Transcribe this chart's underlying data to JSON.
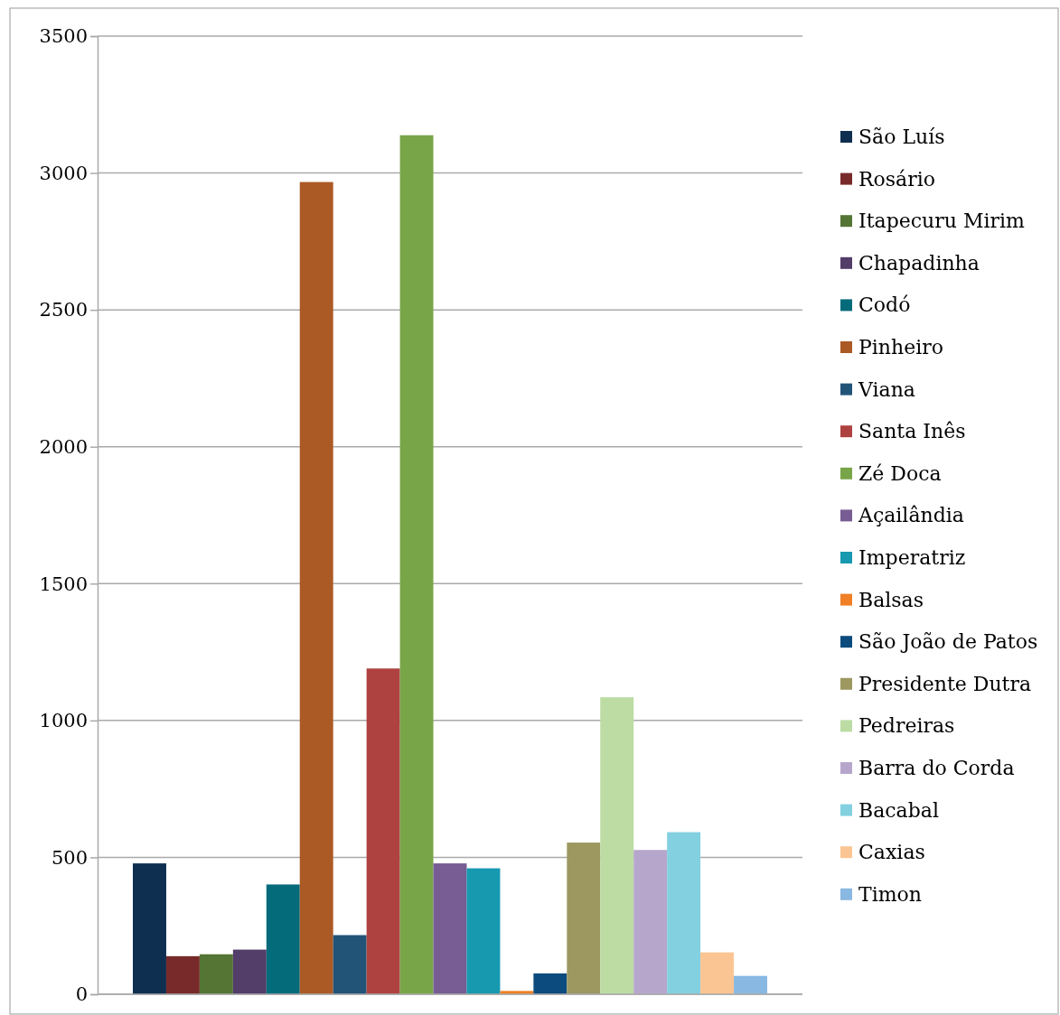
{
  "chart_data": {
    "type": "bar",
    "categories": [
      null
    ],
    "series": [
      {
        "name": "São Luís",
        "color": "#0e2f50",
        "values": [
          478
        ]
      },
      {
        "name": "Rosário",
        "color": "#772a29",
        "values": [
          139
        ]
      },
      {
        "name": "Itapecuru Mirim",
        "color": "#557535",
        "values": [
          146
        ]
      },
      {
        "name": "Chapadinha",
        "color": "#533d69",
        "values": [
          163
        ]
      },
      {
        "name": "Codó",
        "color": "#046b7b",
        "values": [
          401
        ]
      },
      {
        "name": "Pinheiro",
        "color": "#ab5a25",
        "values": [
          2967
        ]
      },
      {
        "name": "Viana",
        "color": "#225478",
        "values": [
          216
        ]
      },
      {
        "name": "Santa Inês",
        "color": "#ae4241",
        "values": [
          1190
        ]
      },
      {
        "name": "Zé Doca",
        "color": "#79a549",
        "values": [
          3138
        ]
      },
      {
        "name": "Açailândia",
        "color": "#775d93",
        "values": [
          478
        ]
      },
      {
        "name": "Imperatriz",
        "color": "#1799b0",
        "values": [
          460
        ]
      },
      {
        "name": "Balsas",
        "color": "#f07f25",
        "values": [
          12
        ]
      },
      {
        "name": "São João de Patos",
        "color": "#0c4b7d",
        "values": [
          76
        ]
      },
      {
        "name": "Presidente Dutra",
        "color": "#9c9860",
        "values": [
          554
        ]
      },
      {
        "name": "Pedreiras",
        "color": "#bcdca4",
        "values": [
          1085
        ]
      },
      {
        "name": "Barra do Corda",
        "color": "#b7a6cc",
        "values": [
          527
        ]
      },
      {
        "name": "Bacabal",
        "color": "#83d0e0",
        "values": [
          592
        ]
      },
      {
        "name": "Caxias",
        "color": "#fbc593",
        "values": [
          153
        ]
      },
      {
        "name": "Timon",
        "color": "#89b8e2",
        "values": [
          67
        ]
      }
    ],
    "ylim": [
      0,
      3500
    ],
    "yticks": [
      0,
      500,
      1000,
      1500,
      2000,
      2500,
      3000,
      3500
    ],
    "grid": "y",
    "legend": "right"
  }
}
